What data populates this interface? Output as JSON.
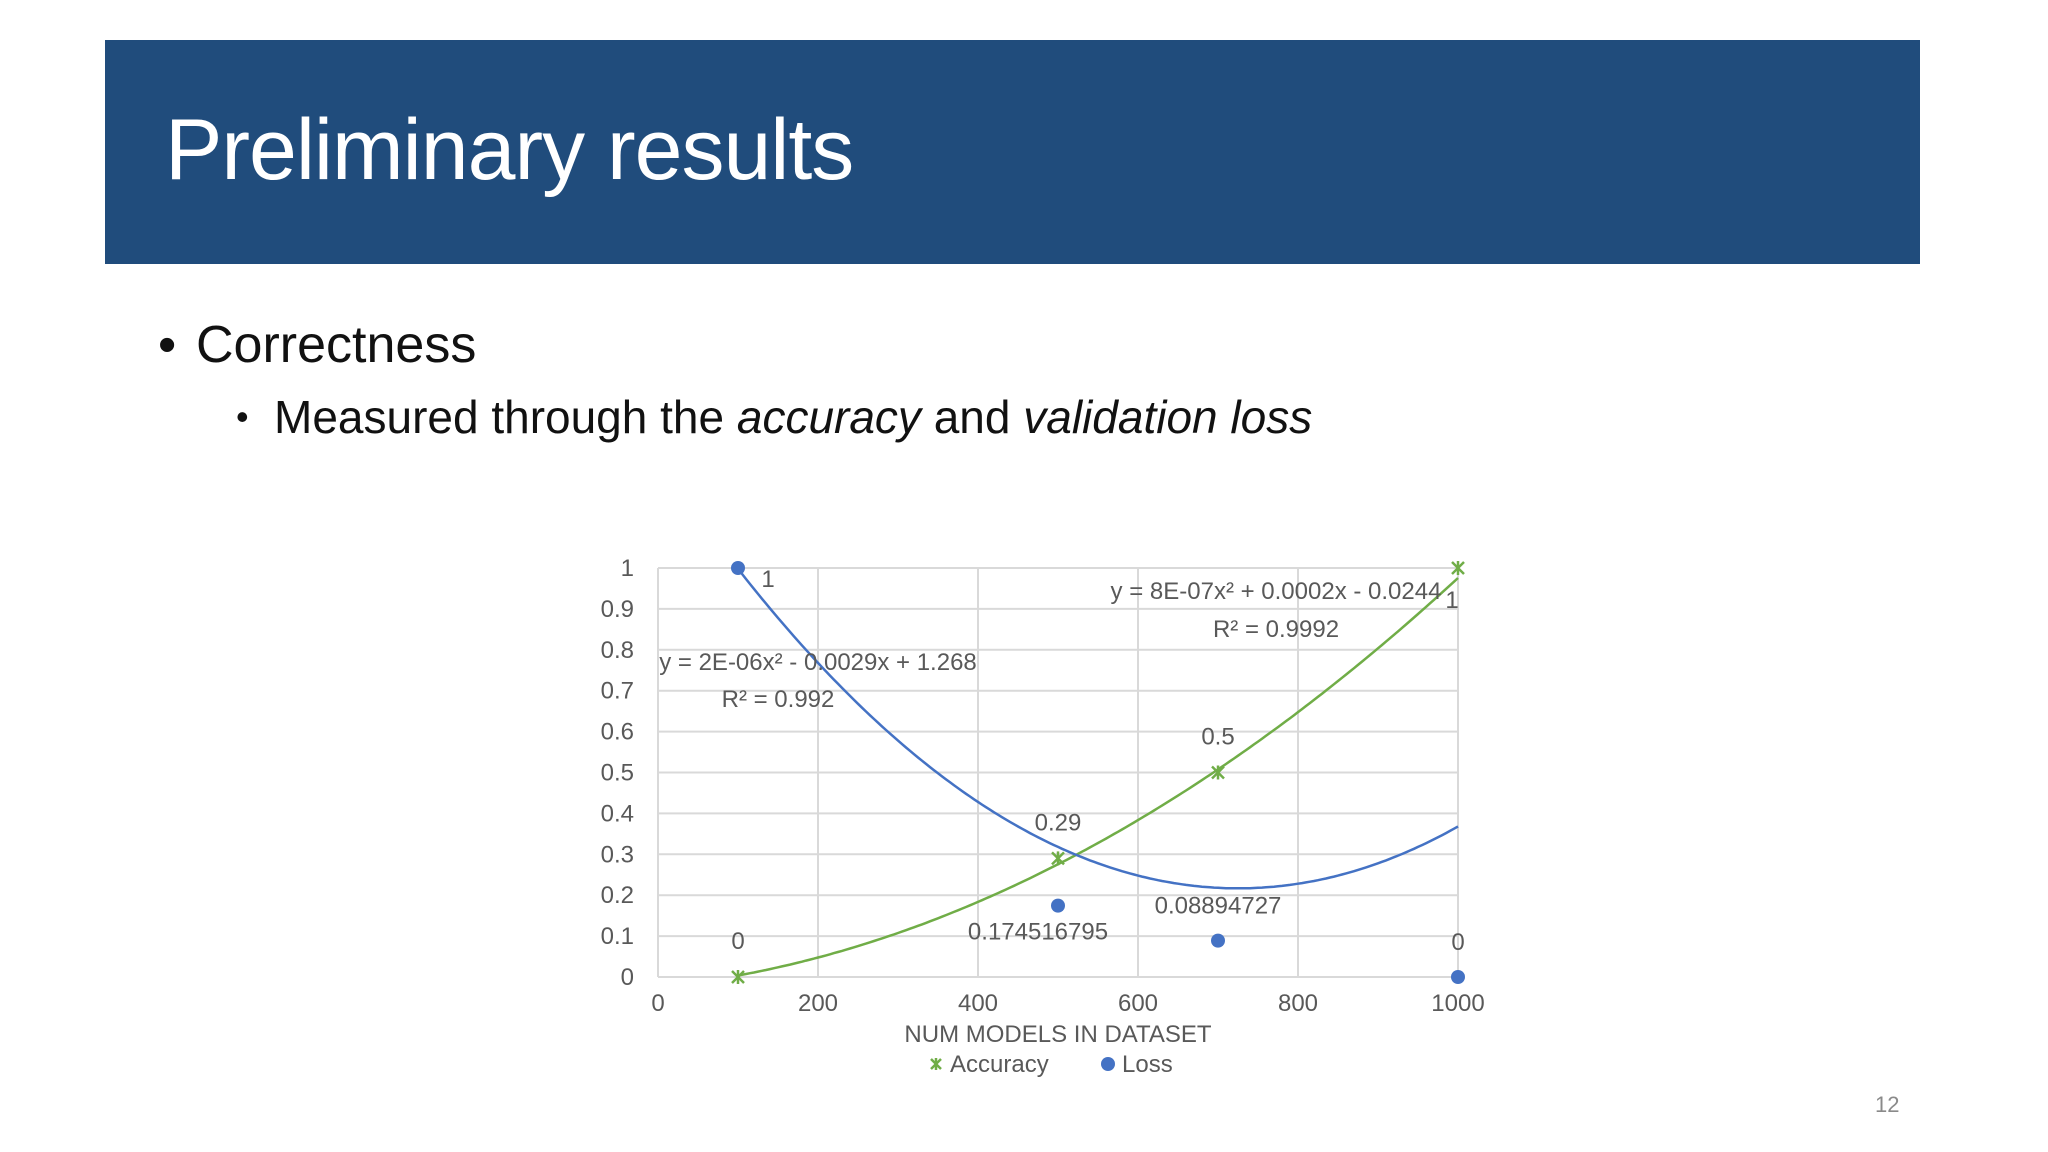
{
  "slide": {
    "title": "Preliminary results",
    "bullet1": "Correctness",
    "bullet2_parts": [
      "Measured through the ",
      "accuracy",
      " and ",
      "validation loss"
    ],
    "bullet_symbol": "•",
    "page_number": "12"
  },
  "colors": {
    "title_bg": "#204c7c",
    "accuracy": "#70ad47",
    "loss": "#4472c4"
  },
  "chart_data": {
    "type": "scatter",
    "title": "",
    "xlabel": "NUM MODELS IN DATASET",
    "ylabel": "",
    "xlim": [
      0,
      1000
    ],
    "ylim": [
      0,
      1
    ],
    "x_ticks": [
      0,
      200,
      400,
      600,
      800,
      1000
    ],
    "y_ticks": [
      0,
      0.1,
      0.2,
      0.3,
      0.4,
      0.5,
      0.6,
      0.7,
      0.8,
      0.9,
      1
    ],
    "grid": true,
    "legend_position": "bottom",
    "series": [
      {
        "name": "Accuracy",
        "marker": "x-star",
        "color": "#70ad47",
        "x": [
          100,
          500,
          700,
          1000
        ],
        "y": [
          0,
          0.29,
          0.5,
          1
        ],
        "labels": [
          "0",
          "0.29",
          "0.5",
          "1"
        ],
        "trendline": {
          "type": "polynomial",
          "coef": [
            8e-07,
            0.0002,
            -0.0244
          ],
          "equation": "y = 8E-07x² + 0.0002x - 0.0244",
          "r2": "R² = 0.9992"
        }
      },
      {
        "name": "Loss",
        "marker": "circle",
        "color": "#4472c4",
        "x": [
          100,
          500,
          700,
          1000
        ],
        "y": [
          1,
          0.174516795,
          0.08894727,
          0
        ],
        "labels": [
          "1",
          "0.174516795",
          "0.08894727",
          "0"
        ],
        "trendline": {
          "type": "polynomial",
          "coef": [
            2e-06,
            -0.0029,
            1.268
          ],
          "equation": "y = 2E-06x² - 0.0029x + 1.268",
          "r2": "R² = 0.992"
        }
      }
    ]
  }
}
